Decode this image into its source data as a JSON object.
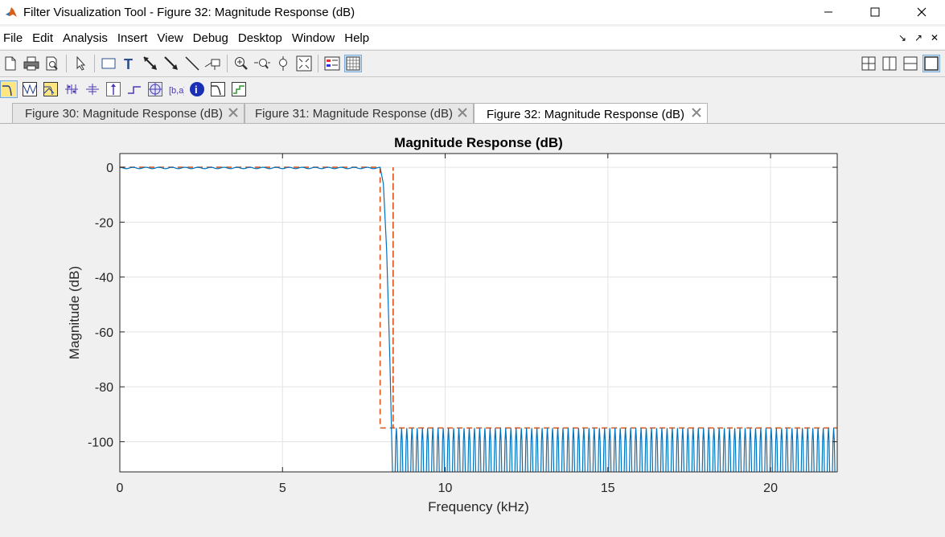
{
  "window": {
    "title": "Filter Visualization Tool - Figure 32: Magnitude Response (dB)"
  },
  "menu": [
    "File",
    "Edit",
    "Analysis",
    "Insert",
    "View",
    "Debug",
    "Desktop",
    "Window",
    "Help"
  ],
  "toolbar1": {
    "buttons": [
      "new-figure-icon",
      "print-icon",
      "print-preview-icon",
      "pointer-icon",
      "rectangle-icon",
      "text-tool-icon",
      "arrow-icon",
      "double-arrow-icon",
      "line-icon",
      "pin-icon",
      "zoom-in-icon",
      "zoom-x-icon",
      "zoom-y-icon",
      "full-view-icon",
      "legend-icon",
      "grid-icon"
    ],
    "right_buttons": [
      "tile-grid-icon",
      "tile-columns-icon",
      "tile-rows-icon",
      "maximize-tile-icon"
    ]
  },
  "toolbar2": {
    "buttons": [
      "magnitude-response-icon",
      "phase-response-icon",
      "magnitude-phase-icon",
      "group-delay-icon",
      "phase-delay-icon",
      "impulse-response-icon",
      "step-response-icon",
      "pole-zero-icon",
      "coefficients-icon",
      "filter-info-icon",
      "magnitude-estimate-icon",
      "round-off-noise-icon"
    ]
  },
  "tabs": [
    {
      "label": "Figure 30: Magnitude Response (dB)",
      "selected": false
    },
    {
      "label": "Figure 31: Magnitude Response (dB)",
      "selected": false
    },
    {
      "label": "Figure 32: Magnitude Response (dB)",
      "selected": true
    }
  ],
  "chart_data": {
    "type": "line",
    "title": "Magnitude Response (dB)",
    "xlabel": "Frequency (kHz)",
    "ylabel": "Magnitude (dB)",
    "xlim": [
      0,
      22.05
    ],
    "ylim": [
      -111,
      5
    ],
    "xticks": [
      0,
      5,
      10,
      15,
      20
    ],
    "yticks": [
      0,
      -20,
      -40,
      -60,
      -80,
      -100
    ],
    "grid": true,
    "colors": {
      "response": "#0072bd",
      "mask": "#d95319"
    },
    "series": [
      {
        "style": "solid",
        "x": [
          0,
          8.0,
          8.1,
          8.2,
          8.3,
          8.38,
          8.42,
          22.05
        ],
        "y": [
          0,
          0,
          -6,
          -30,
          -70,
          -111,
          -95,
          -95
        ]
      },
      {
        "style": "dashed",
        "x": [
          0,
          8.0,
          8.0,
          8.4,
          8.4,
          8.4,
          8.4,
          22.05
        ],
        "y": [
          0,
          0,
          -95,
          -95,
          0,
          0,
          -95,
          -95
        ]
      }
    ],
    "passband_ripple_db": 0.5,
    "stopband_level_db": -95
  }
}
